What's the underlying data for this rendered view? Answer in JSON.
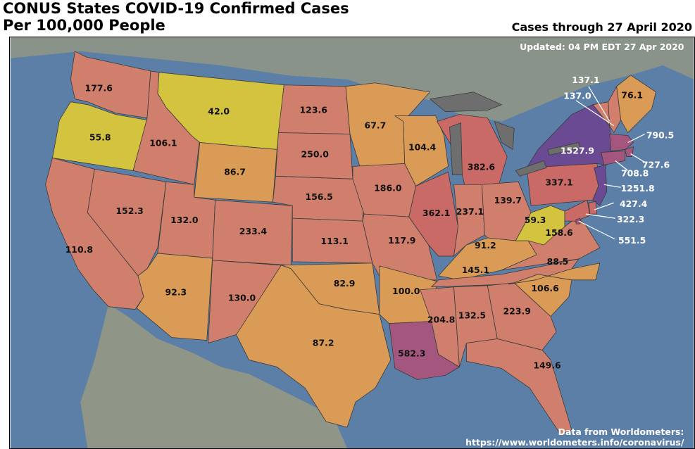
{
  "title_line1": "CONUS States COVID-19 Confirmed Cases",
  "title_line2": "Per 100,000 People",
  "cases_through": "Cases through 27 April 2020",
  "updated": "Updated: 04 PM EDT 27 Apr 2020",
  "source_line1": "Data from Worldometers:",
  "source_line2": "https://www.worldometers.info/coronavirus/",
  "colors": {
    "ocean": "#5b7fa6",
    "land": "#8a9389",
    "yellow": "#d4c33f",
    "orange": "#d99b55",
    "salmon": "#cf7f6c",
    "red": "#c96a66",
    "purple": "#6a4a93",
    "magenta": "#a5567f",
    "lakes": "#6e6e6e"
  },
  "states": [
    {
      "name": "WA",
      "label": "177.6",
      "tier": "salmon"
    },
    {
      "name": "OR",
      "label": "55.8",
      "tier": "yellow"
    },
    {
      "name": "CA",
      "label": "110.8",
      "tier": "salmon"
    },
    {
      "name": "ID",
      "label": "106.1",
      "tier": "salmon"
    },
    {
      "name": "NV",
      "label": "152.3",
      "tier": "salmon"
    },
    {
      "name": "MT",
      "label": "42.0",
      "tier": "yellow"
    },
    {
      "name": "WY",
      "label": "86.7",
      "tier": "orange"
    },
    {
      "name": "UT",
      "label": "132.0",
      "tier": "salmon"
    },
    {
      "name": "AZ",
      "label": "92.3",
      "tier": "orange"
    },
    {
      "name": "CO",
      "label": "233.4",
      "tier": "salmon"
    },
    {
      "name": "NM",
      "label": "130.0",
      "tier": "salmon"
    },
    {
      "name": "ND",
      "label": "123.6",
      "tier": "salmon"
    },
    {
      "name": "SD",
      "label": "250.0",
      "tier": "salmon"
    },
    {
      "name": "NE",
      "label": "156.5",
      "tier": "salmon"
    },
    {
      "name": "KS",
      "label": "113.1",
      "tier": "salmon"
    },
    {
      "name": "OK",
      "label": "82.9",
      "tier": "orange"
    },
    {
      "name": "TX",
      "label": "87.2",
      "tier": "orange"
    },
    {
      "name": "MN",
      "label": "67.7",
      "tier": "orange"
    },
    {
      "name": "IA",
      "label": "186.0",
      "tier": "salmon"
    },
    {
      "name": "MO",
      "label": "117.9",
      "tier": "salmon"
    },
    {
      "name": "AR",
      "label": "100.0",
      "tier": "orange"
    },
    {
      "name": "LA",
      "label": "582.3",
      "tier": "magenta"
    },
    {
      "name": "WI",
      "label": "104.4",
      "tier": "orange"
    },
    {
      "name": "IL",
      "label": "362.1",
      "tier": "red"
    },
    {
      "name": "MI",
      "label": "382.6",
      "tier": "red"
    },
    {
      "name": "IN",
      "label": "237.1",
      "tier": "salmon"
    },
    {
      "name": "OH",
      "label": "139.7",
      "tier": "salmon"
    },
    {
      "name": "KY",
      "label": "91.2",
      "tier": "orange"
    },
    {
      "name": "TN",
      "label": "145.1",
      "tier": "salmon"
    },
    {
      "name": "MS",
      "label": "204.8",
      "tier": "salmon"
    },
    {
      "name": "AL",
      "label": "132.5",
      "tier": "salmon"
    },
    {
      "name": "GA",
      "label": "223.9",
      "tier": "salmon"
    },
    {
      "name": "FL",
      "label": "149.6",
      "tier": "salmon"
    },
    {
      "name": "SC",
      "label": "106.6",
      "tier": "orange"
    },
    {
      "name": "NC",
      "label": "88.5",
      "tier": "orange"
    },
    {
      "name": "VA",
      "label": "158.6",
      "tier": "salmon"
    },
    {
      "name": "WV",
      "label": "59.3",
      "tier": "yellow"
    },
    {
      "name": "PA",
      "label": "337.1",
      "tier": "red"
    },
    {
      "name": "NY",
      "label": "1527.9",
      "tier": "purple"
    },
    {
      "name": "VT",
      "label": "137.1",
      "tier": "salmon"
    },
    {
      "name": "NH",
      "label": "137.0",
      "tier": "salmon"
    },
    {
      "name": "ME",
      "label": "76.1",
      "tier": "orange"
    },
    {
      "name": "MA",
      "label": "790.5",
      "tier": "magenta"
    },
    {
      "name": "RI",
      "label": "727.6",
      "tier": "magenta"
    },
    {
      "name": "CT",
      "label": "708.8",
      "tier": "magenta"
    },
    {
      "name": "NJ",
      "label": "1251.8",
      "tier": "purple"
    },
    {
      "name": "DE",
      "label": "427.4",
      "tier": "red"
    },
    {
      "name": "DC",
      "label": "551.5",
      "tier": "magenta"
    },
    {
      "name": "MD",
      "label": "322.3",
      "tier": "red"
    }
  ]
}
